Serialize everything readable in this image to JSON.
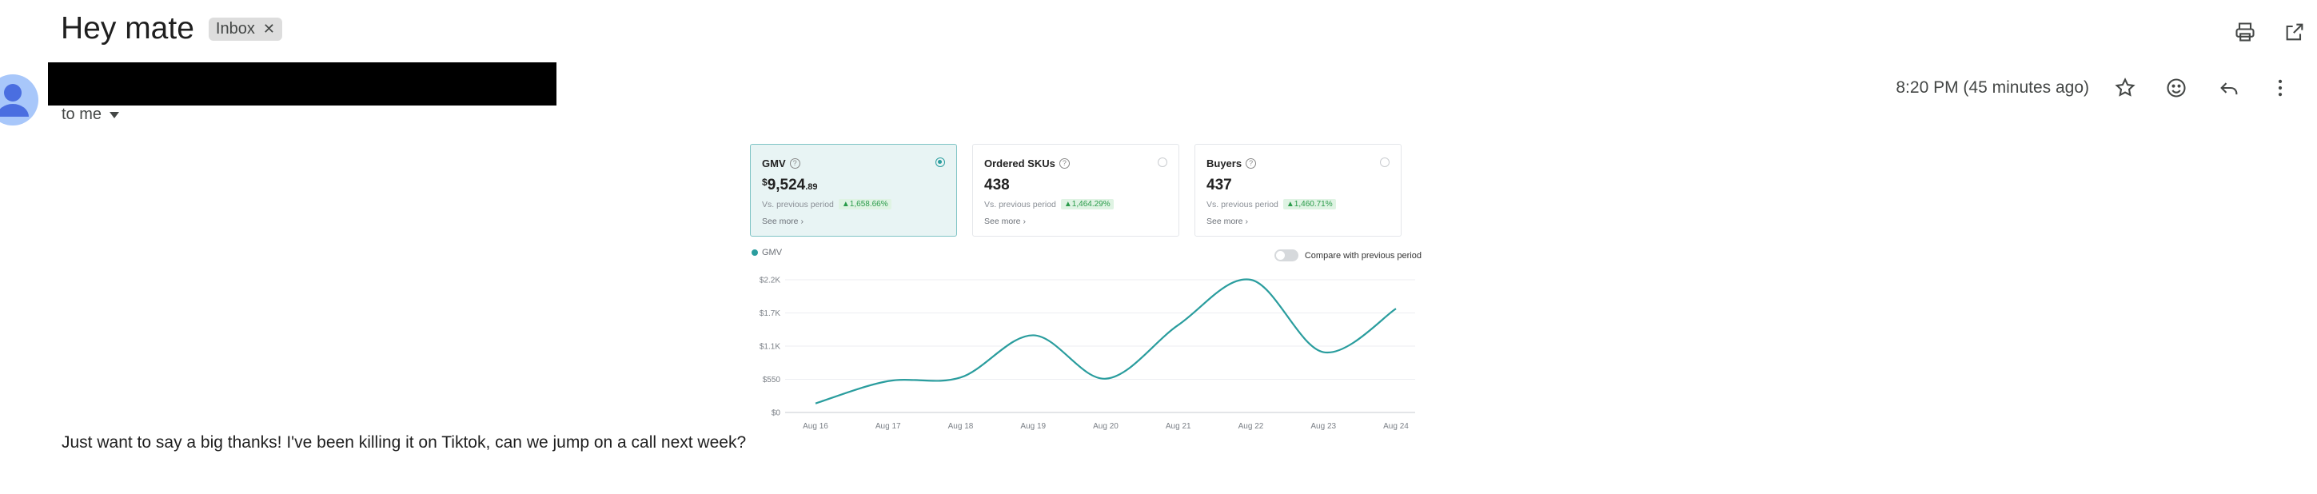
{
  "email": {
    "subject": "Hey mate",
    "label": "Inbox",
    "to_me": "to me",
    "timestamp": "8:20 PM (45 minutes ago)",
    "body": "Just want to say a big thanks! I've been killing it on Tiktok, can we jump on a call next week?"
  },
  "icons": {
    "print": "print-icon",
    "open_new": "open-in-new-window-icon",
    "star": "star-icon",
    "emoji": "emoji-icon",
    "reply": "reply-icon",
    "more": "more-vert-icon"
  },
  "dashboard": {
    "cards": [
      {
        "title": "GMV",
        "currency": "$",
        "value": "9,524",
        "decimal": ".89",
        "vs": "Vs. previous period",
        "change": "1,658.66%",
        "see_more": "See more",
        "selected": true
      },
      {
        "title": "Ordered SKUs",
        "value": "438",
        "vs": "Vs. previous period",
        "change": "1,464.29%",
        "see_more": "See more",
        "selected": false
      },
      {
        "title": "Buyers",
        "value": "437",
        "vs": "Vs. previous period",
        "change": "1,460.71%",
        "see_more": "See more",
        "selected": false
      }
    ],
    "compare_label": "Compare with previous period",
    "accent_color": "#2a9d9e"
  },
  "chart_data": {
    "type": "line",
    "series": [
      {
        "name": "GMV",
        "values": [
          150,
          520,
          580,
          1280,
          560,
          1450,
          2200,
          1000,
          1720
        ]
      }
    ],
    "categories": [
      "Aug 16",
      "Aug 17",
      "Aug 18",
      "Aug 19",
      "Aug 20",
      "Aug 21",
      "Aug 22",
      "Aug 23",
      "Aug 24"
    ],
    "y_ticks": [
      "$0",
      "$550",
      "$1.1K",
      "$1.7K",
      "$2.2K"
    ],
    "y_tick_values": [
      0,
      550,
      1100,
      1650,
      2200
    ],
    "ylim": [
      0,
      2200
    ],
    "grid": true,
    "legend": "top-left"
  }
}
